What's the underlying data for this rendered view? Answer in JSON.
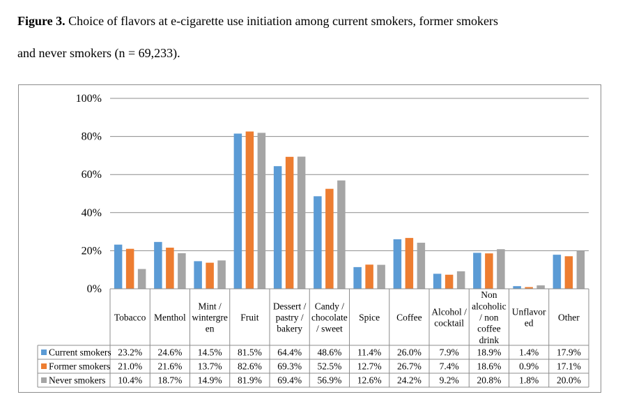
{
  "caption": {
    "label": "Figure 3.",
    "text_line1": "Choice of flavors at e-cigarette use initiation among current smokers, former smokers",
    "text_line2": "and never smokers (n = 69,233)."
  },
  "chart_data": {
    "type": "bar",
    "title": "",
    "xlabel": "",
    "ylabel": "",
    "ylim": [
      0,
      100
    ],
    "yticks": [
      "0%",
      "20%",
      "40%",
      "60%",
      "80%",
      "100%"
    ],
    "grid": true,
    "legend": "table-left",
    "categories": [
      [
        "Tobacco"
      ],
      [
        "Menthol"
      ],
      [
        "Mint /",
        "wintergre",
        "en"
      ],
      [
        "Fruit"
      ],
      [
        "Dessert /",
        "pastry /",
        "bakery"
      ],
      [
        "Candy /",
        "chocolate",
        "/ sweet"
      ],
      [
        "Spice"
      ],
      [
        "Coffee"
      ],
      [
        "Alcohol /",
        "cocktail"
      ],
      [
        "Non",
        "alcoholic",
        "/ non",
        "coffee",
        "drink"
      ],
      [
        "Unflavor",
        "ed"
      ],
      [
        "Other"
      ]
    ],
    "series": [
      {
        "name": "Current smokers",
        "color": "#5b9bd5",
        "values": [
          23.2,
          24.6,
          14.5,
          81.5,
          64.4,
          48.6,
          11.4,
          26.0,
          7.9,
          18.9,
          1.4,
          17.9
        ],
        "labels": [
          "23.2%",
          "24.6%",
          "14.5%",
          "81.5%",
          "64.4%",
          "48.6%",
          "11.4%",
          "26.0%",
          "7.9%",
          "18.9%",
          "1.4%",
          "17.9%"
        ]
      },
      {
        "name": "Former smokers",
        "color": "#ed7d31",
        "values": [
          21.0,
          21.6,
          13.7,
          82.6,
          69.3,
          52.5,
          12.7,
          26.7,
          7.4,
          18.6,
          0.9,
          17.1
        ],
        "labels": [
          "21.0%",
          "21.6%",
          "13.7%",
          "82.6%",
          "69.3%",
          "52.5%",
          "12.7%",
          "26.7%",
          "7.4%",
          "18.6%",
          "0.9%",
          "17.1%"
        ]
      },
      {
        "name": "Never smokers",
        "color": "#a5a5a5",
        "values": [
          10.4,
          18.7,
          14.9,
          81.9,
          69.4,
          56.9,
          12.6,
          24.2,
          9.2,
          20.8,
          1.8,
          20.0
        ],
        "labels": [
          "10.4%",
          "18.7%",
          "14.9%",
          "81.9%",
          "69.4%",
          "56.9%",
          "12.6%",
          "24.2%",
          "9.2%",
          "20.8%",
          "1.8%",
          "20.0%"
        ]
      }
    ]
  }
}
